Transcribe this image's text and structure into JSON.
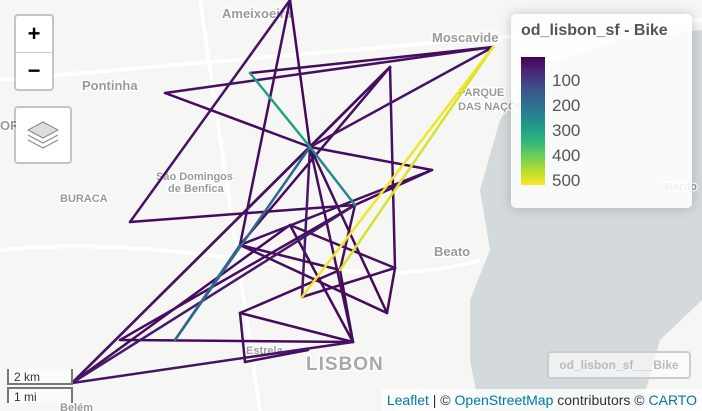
{
  "map": {
    "places": [
      "Ameixoeira",
      "Moscavide",
      "Pontinha",
      "São Domingos",
      "de Benfica",
      "BURACA",
      "PARQUE",
      "DAS NAÇÕES",
      "Beato",
      "LISBON",
      "Estrela",
      "Belém",
      "OR",
      "Mardo"
    ],
    "zoom_in": "+",
    "zoom_out": "−",
    "legend": {
      "title": "od_lisbon_sf - Bike",
      "ticks": [
        100,
        200,
        300,
        400,
        500
      ],
      "range": [
        8,
        520
      ],
      "colors": [
        "#440154",
        "#482878",
        "#3e4a89",
        "#31688e",
        "#26828e",
        "#1f9e89",
        "#35b779",
        "#6ece58",
        "#b5de2b",
        "#fde725"
      ]
    },
    "layer_label": "od_lisbon_sf___Bike",
    "scale": [
      "2 km",
      "1 mi"
    ],
    "attribution": {
      "leaflet": "Leaflet",
      "sep": "| ©",
      "osm": "OpenStreetMap",
      "contrib": "contributors ©",
      "carto": "CARTO"
    },
    "flows": [
      {
        "value": 20
      },
      {
        "value": 25
      },
      {
        "value": 30
      },
      {
        "value": 22
      },
      {
        "value": 300
      },
      {
        "value": 510
      },
      {
        "value": 490
      },
      {
        "value": 35
      },
      {
        "value": 28
      },
      {
        "value": 24
      },
      {
        "value": 30
      },
      {
        "value": 26
      },
      {
        "value": 32
      },
      {
        "value": 180
      },
      {
        "value": 250
      },
      {
        "value": 40
      },
      {
        "value": 27
      },
      {
        "value": 23
      },
      {
        "value": 21
      },
      {
        "value": 29
      },
      {
        "value": 22
      },
      {
        "value": 33
      },
      {
        "value": 25
      },
      {
        "value": 45
      },
      {
        "value": 28
      },
      {
        "value": 24
      },
      {
        "value": 26
      },
      {
        "value": 22
      },
      {
        "value": 30
      },
      {
        "value": 21
      },
      {
        "value": 27
      },
      {
        "value": 24
      },
      {
        "value": 23
      },
      {
        "value": 25
      },
      {
        "value": 22
      },
      {
        "value": 28
      },
      {
        "value": 26
      },
      {
        "value": 24
      },
      {
        "value": 160
      },
      {
        "value": 35
      },
      {
        "value": 30
      },
      {
        "value": 22
      }
    ]
  }
}
